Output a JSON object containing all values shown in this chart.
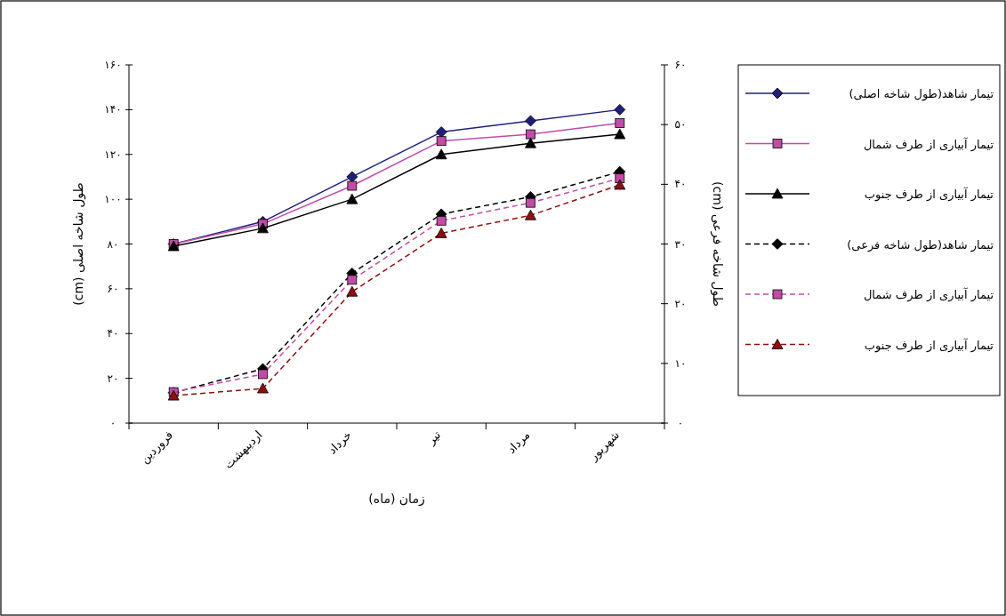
{
  "chart_data": {
    "type": "line",
    "xlabel": "زمان (ماه)",
    "ylabel": "طول شاخه اصلی (cm)",
    "y2label": "طول شاخه فرعی (cm)",
    "categories": [
      "فروردین",
      "اردیبهشت",
      "خرداد",
      "تیر",
      "مرداد",
      "شهریور"
    ],
    "ylim": [
      0,
      160
    ],
    "yticks": [
      {
        "value": 0,
        "label": "۰"
      },
      {
        "value": 20,
        "label": "۲۰"
      },
      {
        "value": 40,
        "label": "۴۰"
      },
      {
        "value": 60,
        "label": "۶۰"
      },
      {
        "value": 80,
        "label": "۸۰"
      },
      {
        "value": 100,
        "label": "۱۰۰"
      },
      {
        "value": 120,
        "label": "۱۲۰"
      },
      {
        "value": 140,
        "label": "۱۴۰"
      },
      {
        "value": 160,
        "label": "۱۶۰"
      }
    ],
    "y2lim": [
      0,
      60
    ],
    "y2ticks": [
      {
        "value": 0,
        "label": "۰"
      },
      {
        "value": 10,
        "label": "۱۰"
      },
      {
        "value": 20,
        "label": "۲۰"
      },
      {
        "value": 30,
        "label": "۳۰"
      },
      {
        "value": 40,
        "label": "۴۰"
      },
      {
        "value": 50,
        "label": "۵۰"
      },
      {
        "value": 60,
        "label": "۶۰"
      }
    ],
    "legend": "right",
    "grid": false,
    "series": [
      {
        "name": "تیمار شاهد(طول شاخه اصلی)",
        "color": "#1f1f7a",
        "marker": "diamond",
        "line_style": "solid",
        "values": [
          80,
          90,
          110,
          130,
          135,
          140
        ]
      },
      {
        "name": "تیمار آبیاری از طرف شمال",
        "color": "#c04ca6",
        "marker": "square",
        "line_style": "solid",
        "values": [
          80,
          89,
          106,
          126,
          129,
          134
        ]
      },
      {
        "name": "تیمار آبیاری از طرف جنوب",
        "color": "#000000",
        "marker": "triangle",
        "line_style": "solid",
        "values": [
          79,
          87,
          100,
          120,
          125,
          129
        ]
      },
      {
        "name": "تیمار شاهد(طول شاخه فرعی)",
        "color": "#000000",
        "marker": "diamond",
        "line_style": "dashed",
        "axis": "y2",
        "values": [
          5.1,
          9.1,
          25.1,
          35,
          37.9,
          42.1
        ]
      },
      {
        "name": "تیمار آبیاری از طرف شمال",
        "color": "#c04ca6",
        "marker": "square",
        "line_style": "dashed",
        "axis": "y2",
        "values": [
          5.2,
          8.2,
          24,
          33.9,
          36.9,
          41
        ]
      },
      {
        "name": "تیمار آبیاری از طرف جنوب",
        "color": "#8b1010",
        "marker": "triangle",
        "line_style": "dashed",
        "axis": "y2",
        "values": [
          4.6,
          5.8,
          22,
          31.8,
          34.8,
          39.9
        ]
      }
    ]
  }
}
